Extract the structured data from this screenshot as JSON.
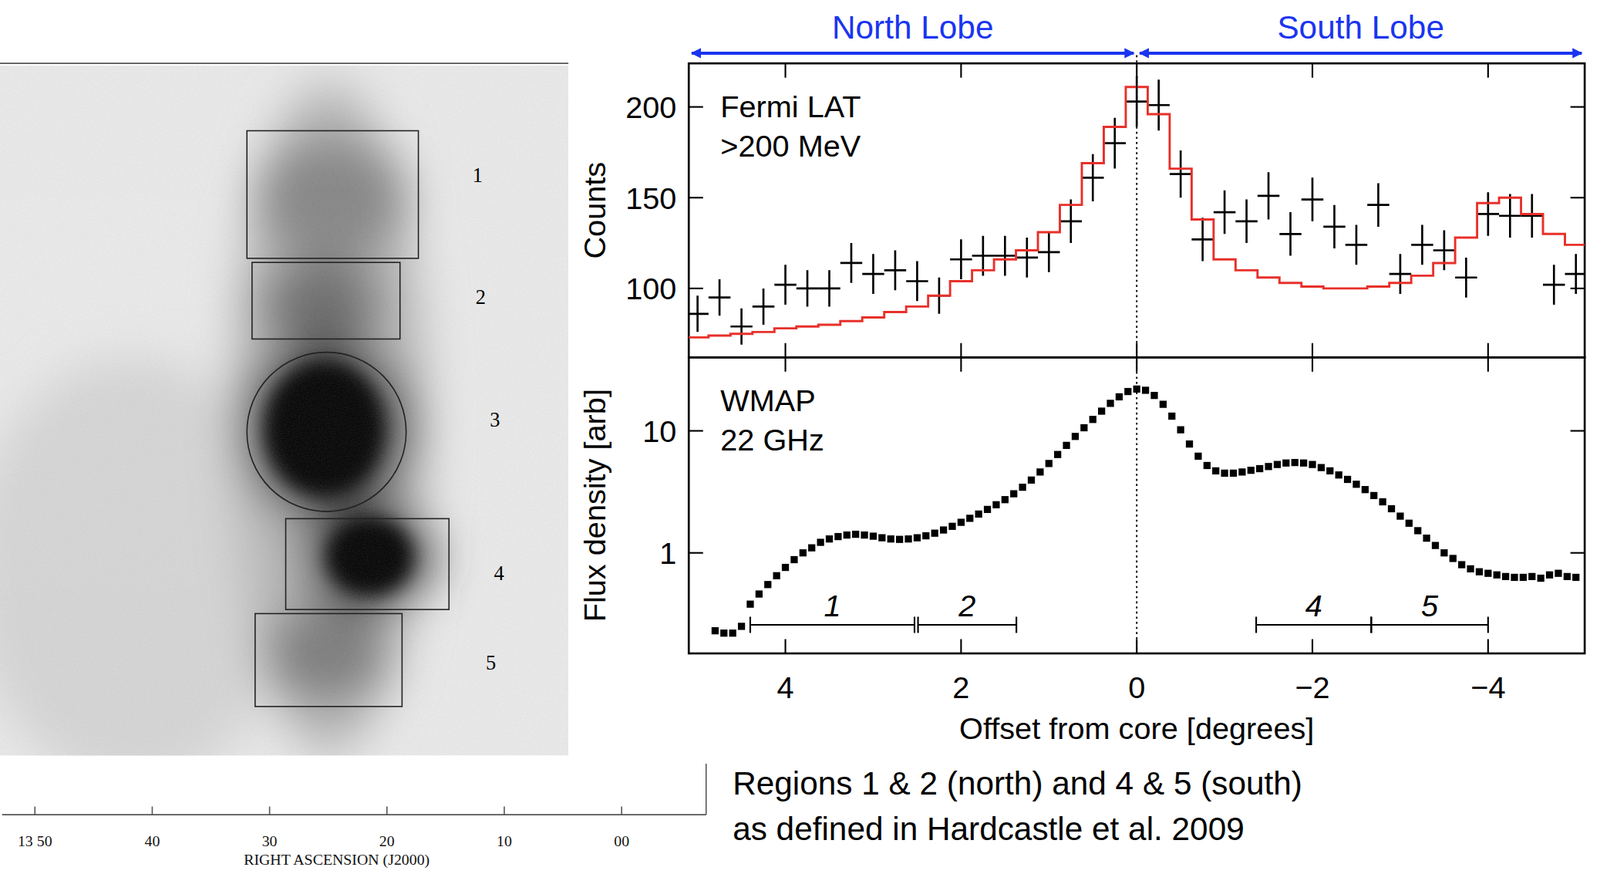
{
  "chart_data": [
    {
      "type": "scatter",
      "panel_label": [
        "Fermi LAT",
        ">200 MeV"
      ],
      "ylabel": "Counts",
      "xlim": [
        5.1,
        -5.1
      ],
      "xticks": [
        4,
        2,
        0,
        {
          "value": -2,
          "label": "−2"
        },
        {
          "value": -4,
          "label": "−4"
        }
      ],
      "ylim": [
        62,
        224
      ],
      "yticks": [
        100,
        150,
        200
      ],
      "tick_labels": "y",
      "reference_line_x": 0,
      "lobes": [
        {
          "label": "North Lobe",
          "from": 5.1,
          "to": 0
        },
        {
          "label": "South Lobe",
          "from": 0,
          "to": -5.1
        }
      ],
      "series": [
        {
          "type": "scatter",
          "marker": "cross",
          "color": "#000000",
          "x_errors": 0.125,
          "x": [
            5,
            4.75,
            4.5,
            4.25,
            4,
            3.75,
            3.5,
            3.25,
            3,
            2.75,
            2.5,
            2.25,
            2,
            1.75,
            1.5,
            1.25,
            1,
            0.75,
            0.5,
            0.25,
            0,
            -0.25,
            -0.5,
            -0.75,
            -1,
            -1.25,
            -1.5,
            -1.75,
            -2,
            -2.25,
            -2.5,
            -2.75,
            -3,
            -3.25,
            -3.5,
            -3.75,
            -4,
            -4.25,
            -4.5,
            -4.75,
            -5
          ],
          "values": [
            86,
            95,
            79,
            90,
            102,
            100,
            100,
            114,
            108,
            110,
            104,
            96,
            116,
            118,
            118,
            117,
            120,
            137,
            161,
            180,
            203,
            201,
            163,
            127,
            142,
            137,
            151,
            130,
            149,
            134,
            124,
            146,
            108,
            124,
            121,
            106,
            141,
            140,
            140,
            102,
            108
          ],
          "errors": [
            10,
            10,
            10,
            10,
            11,
            10,
            10,
            11,
            11,
            11,
            11,
            10,
            11,
            11,
            11,
            11,
            11,
            12,
            13,
            14,
            14,
            14,
            13,
            12,
            12,
            12,
            13,
            12,
            12,
            12,
            11,
            12,
            11,
            11,
            11,
            11,
            12,
            12,
            12,
            11,
            11
          ]
        },
        {
          "type": "step",
          "line_style": "solid",
          "color": "#e8302a",
          "x_errors": 0.125,
          "x": [
            5,
            4.75,
            4.5,
            4.25,
            4,
            3.75,
            3.5,
            3.25,
            3,
            2.75,
            2.5,
            2.25,
            2,
            1.75,
            1.5,
            1.25,
            1,
            0.75,
            0.5,
            0.25,
            0,
            -0.25,
            -0.5,
            -0.75,
            -1,
            -1.25,
            -1.5,
            -1.75,
            -2,
            -2.25,
            -2.5,
            -2.75,
            -3,
            -3.25,
            -3.5,
            -3.75,
            -4,
            -4.25,
            -4.5,
            -4.75,
            -5
          ],
          "values": [
            73,
            74,
            75,
            76,
            78,
            79,
            80,
            82,
            84,
            87,
            90,
            96,
            104,
            110,
            116,
            121,
            131,
            146,
            169,
            189,
            211,
            196,
            166,
            138,
            116,
            110,
            106,
            103,
            101,
            100,
            100,
            101,
            103,
            107,
            114,
            128,
            147,
            150,
            141,
            130,
            124
          ]
        }
      ]
    },
    {
      "type": "scatter",
      "panel_label": [
        "WMAP",
        "22 GHz"
      ],
      "ylabel": "Flux density [arb]",
      "xlabel": "Offset from core [degrees]",
      "log": "y",
      "xlim": [
        5.1,
        -5.1
      ],
      "xticks": [
        4,
        2,
        0,
        {
          "value": -2,
          "label": "−2"
        },
        {
          "value": -4,
          "label": "−4"
        }
      ],
      "ylim": [
        0.15,
        40
      ],
      "yticks": [
        1,
        10
      ],
      "regions": [
        {
          "label": "1",
          "from": 4.4,
          "to": 2.53
        },
        {
          "label": "2",
          "from": 2.49,
          "to": 1.37
        },
        {
          "label": "4",
          "from": -1.36,
          "to": -2.67
        },
        {
          "label": "5",
          "from": -2.67,
          "to": -4.0
        }
      ],
      "series": [
        {
          "type": "scatter",
          "marker": "square",
          "color": "#000000",
          "x": [
            4.8,
            4.7,
            4.6,
            4.5,
            4.4,
            4.3,
            4.2,
            4.1,
            4.0,
            3.9,
            3.8,
            3.7,
            3.6,
            3.5,
            3.4,
            3.3,
            3.2,
            3.1,
            3.0,
            2.9,
            2.8,
            2.7,
            2.6,
            2.5,
            2.4,
            2.3,
            2.2,
            2.1,
            2.0,
            1.9,
            1.8,
            1.7,
            1.6,
            1.5,
            1.4,
            1.3,
            1.2,
            1.1,
            1.0,
            0.9,
            0.8,
            0.7,
            0.6,
            0.5,
            0.4,
            0.3,
            0.2,
            0.1,
            0.0,
            -0.1,
            -0.2,
            -0.3,
            -0.4,
            -0.5,
            -0.6,
            -0.7,
            -0.8,
            -0.9,
            -1.0,
            -1.1,
            -1.2,
            -1.3,
            -1.4,
            -1.5,
            -1.6,
            -1.7,
            -1.8,
            -1.9,
            -2.0,
            -2.1,
            -2.2,
            -2.3,
            -2.4,
            -2.5,
            -2.6,
            -2.7,
            -2.8,
            -2.9,
            -3.0,
            -3.1,
            -3.2,
            -3.3,
            -3.4,
            -3.5,
            -3.6,
            -3.7,
            -3.8,
            -3.9,
            -4.0,
            -4.1,
            -4.2,
            -4.3,
            -4.4,
            -4.5,
            -4.6,
            -4.7,
            -4.8,
            -4.9,
            -5.0
          ],
          "values": [
            0.23,
            0.22,
            0.22,
            0.25,
            0.38,
            0.46,
            0.55,
            0.65,
            0.76,
            0.88,
            1.0,
            1.1,
            1.22,
            1.3,
            1.36,
            1.4,
            1.42,
            1.4,
            1.37,
            1.33,
            1.3,
            1.29,
            1.3,
            1.33,
            1.38,
            1.45,
            1.54,
            1.65,
            1.78,
            1.92,
            2.08,
            2.27,
            2.48,
            2.73,
            3.05,
            3.45,
            3.95,
            4.6,
            5.4,
            6.4,
            7.6,
            9.0,
            10.6,
            12.4,
            14.5,
            16.8,
            19.0,
            21.0,
            22.0,
            21.5,
            19.5,
            16.5,
            13.2,
            10.2,
            7.8,
            6.2,
            5.2,
            4.7,
            4.5,
            4.5,
            4.6,
            4.75,
            4.9,
            5.1,
            5.3,
            5.45,
            5.5,
            5.45,
            5.3,
            5.0,
            4.7,
            4.35,
            4.0,
            3.65,
            3.3,
            2.95,
            2.62,
            2.3,
            2.0,
            1.75,
            1.52,
            1.32,
            1.15,
            1.0,
            0.9,
            0.8,
            0.74,
            0.7,
            0.68,
            0.66,
            0.64,
            0.63,
            0.63,
            0.64,
            0.62,
            0.66,
            0.68,
            0.64,
            0.63
          ]
        }
      ]
    },
    {
      "type": "image",
      "xlabel": "RIGHT ASCENSION (J2000)",
      "xlim": [
        52.8,
        -7.2
      ],
      "xticks": [
        {
          "value": 50,
          "label": "13 50"
        },
        40,
        30,
        20,
        10,
        {
          "value": 0,
          "label": "00"
        }
      ],
      "region_labels": [
        "1",
        "2",
        "3",
        "4",
        "5"
      ]
    }
  ],
  "caption": [
    "Regions 1 & 2 (north) and 4 & 5 (south)",
    "as defined in Hardcastle et al. 2009"
  ]
}
